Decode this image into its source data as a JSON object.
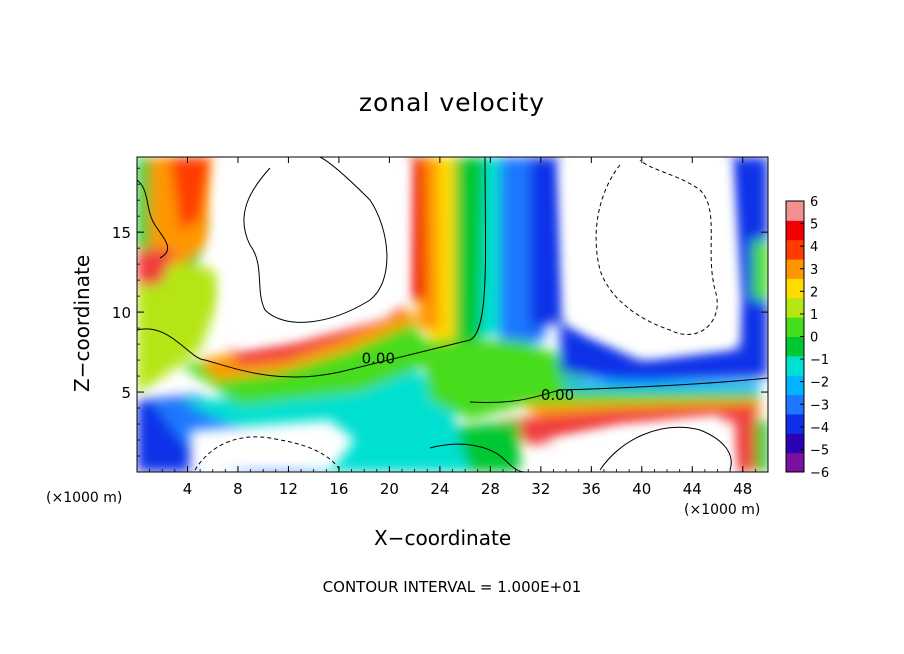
{
  "chart_data": {
    "type": "heatmap",
    "title": "zonal velocity",
    "xlabel": "X−coordinate",
    "ylabel": "Z−coordinate",
    "x_unit_left": "(×1000 m)",
    "x_unit_right": "(×1000 m)",
    "footer": "CONTOUR INTERVAL = 1.000E+01",
    "xlim": [
      0,
      50
    ],
    "ylim": [
      0,
      19.7
    ],
    "x_ticks": [
      "4",
      "8",
      "12",
      "16",
      "20",
      "24",
      "28",
      "32",
      "36",
      "40",
      "44",
      "48"
    ],
    "y_ticks": [
      "5",
      "10",
      "15"
    ],
    "colorbar": {
      "ticks": [
        "6",
        "5",
        "4",
        "3",
        "2",
        "1",
        "0",
        "−1",
        "−2",
        "−3",
        "−4",
        "−5",
        "−6"
      ],
      "range": [
        -6,
        6
      ],
      "colors": [
        "#7a0fa0",
        "#2d00b4",
        "#1030e8",
        "#1e78ff",
        "#00b4ff",
        "#00e0d0",
        "#00c832",
        "#46dc1e",
        "#b4e614",
        "#ffdc00",
        "#ff9600",
        "#ff3c00",
        "#f00000",
        "#f09090"
      ]
    },
    "contour_labels": [
      {
        "text": "0.00",
        "x": 17.8,
        "y": 6.8
      },
      {
        "text": "0.00",
        "x": 32.0,
        "y": 4.5
      }
    ]
  }
}
